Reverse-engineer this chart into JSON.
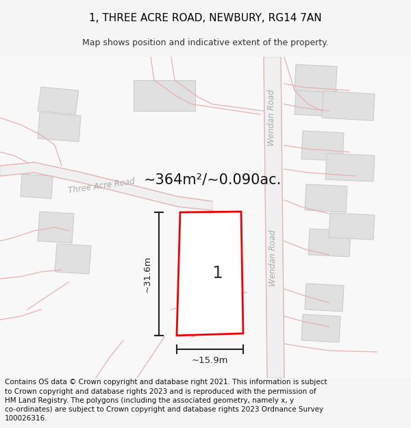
{
  "title": "1, THREE ACRE ROAD, NEWBURY, RG14 7AN",
  "subtitle": "Map shows position and indicative extent of the property.",
  "area_text": "~364m²/~0.090ac.",
  "width_label": "~15.9m",
  "height_label": "~31.6m",
  "plot_number": "1",
  "footer_text": "Contains OS data © Crown copyright and database right 2021. This information is subject to Crown copyright and database rights 2023 and is reproduced with the permission of HM Land Registry. The polygons (including the associated geometry, namely x, y co-ordinates) are subject to Crown copyright and database rights 2023 Ordnance Survey 100026316.",
  "bg_color": "#f5f5f5",
  "map_bg": "#f8f8f8",
  "road_line_color": "#e8b0b0",
  "road_fill_color": "#f0f0f0",
  "road_edge_color": "#d8d8d8",
  "plot_fill": "#ffffff",
  "plot_edge": "#ee0000",
  "building_fill": "#e0e0e0",
  "building_edge": "#cccccc",
  "road_label_color": "#aaaaaa",
  "dim_line_color": "#222222",
  "title_fontsize": 11,
  "subtitle_fontsize": 9,
  "area_fontsize": 15,
  "footer_fontsize": 7.5,
  "plot_label_fontsize": 18
}
